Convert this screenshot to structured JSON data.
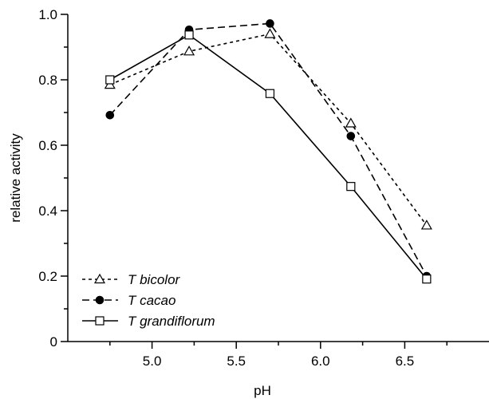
{
  "chart_data": {
    "type": "line",
    "title": "",
    "xlabel": "pH",
    "ylabel": "relative activity",
    "xlim": [
      4.5,
      7.0
    ],
    "ylim": [
      0,
      1.0
    ],
    "x_ticks": [
      "5.0",
      "5.5",
      "6.0",
      "6.5"
    ],
    "y_ticks": [
      "0",
      "0.2",
      "0.4",
      "0.6",
      "0.8",
      "1.0"
    ],
    "grid": false,
    "legend_position": "bottom-left",
    "series": [
      {
        "name": "T bicolor",
        "line_style": "dotted",
        "marker": "open-triangle",
        "color": "#000000",
        "x": [
          4.75,
          5.22,
          5.7,
          6.18,
          6.63
        ],
        "y": [
          0.785,
          0.887,
          0.94,
          0.667,
          0.355
        ]
      },
      {
        "name": "T cacao",
        "line_style": "dashed",
        "marker": "filled-circle",
        "color": "#000000",
        "x": [
          4.75,
          5.22,
          5.7,
          6.18,
          6.63
        ],
        "y": [
          0.692,
          0.953,
          0.972,
          0.628,
          0.2
        ]
      },
      {
        "name": "T grandiflorum",
        "line_style": "solid",
        "marker": "open-square",
        "color": "#000000",
        "x": [
          4.75,
          5.22,
          5.7,
          6.18,
          6.63
        ],
        "y": [
          0.8,
          0.937,
          0.758,
          0.474,
          0.191
        ]
      }
    ]
  }
}
